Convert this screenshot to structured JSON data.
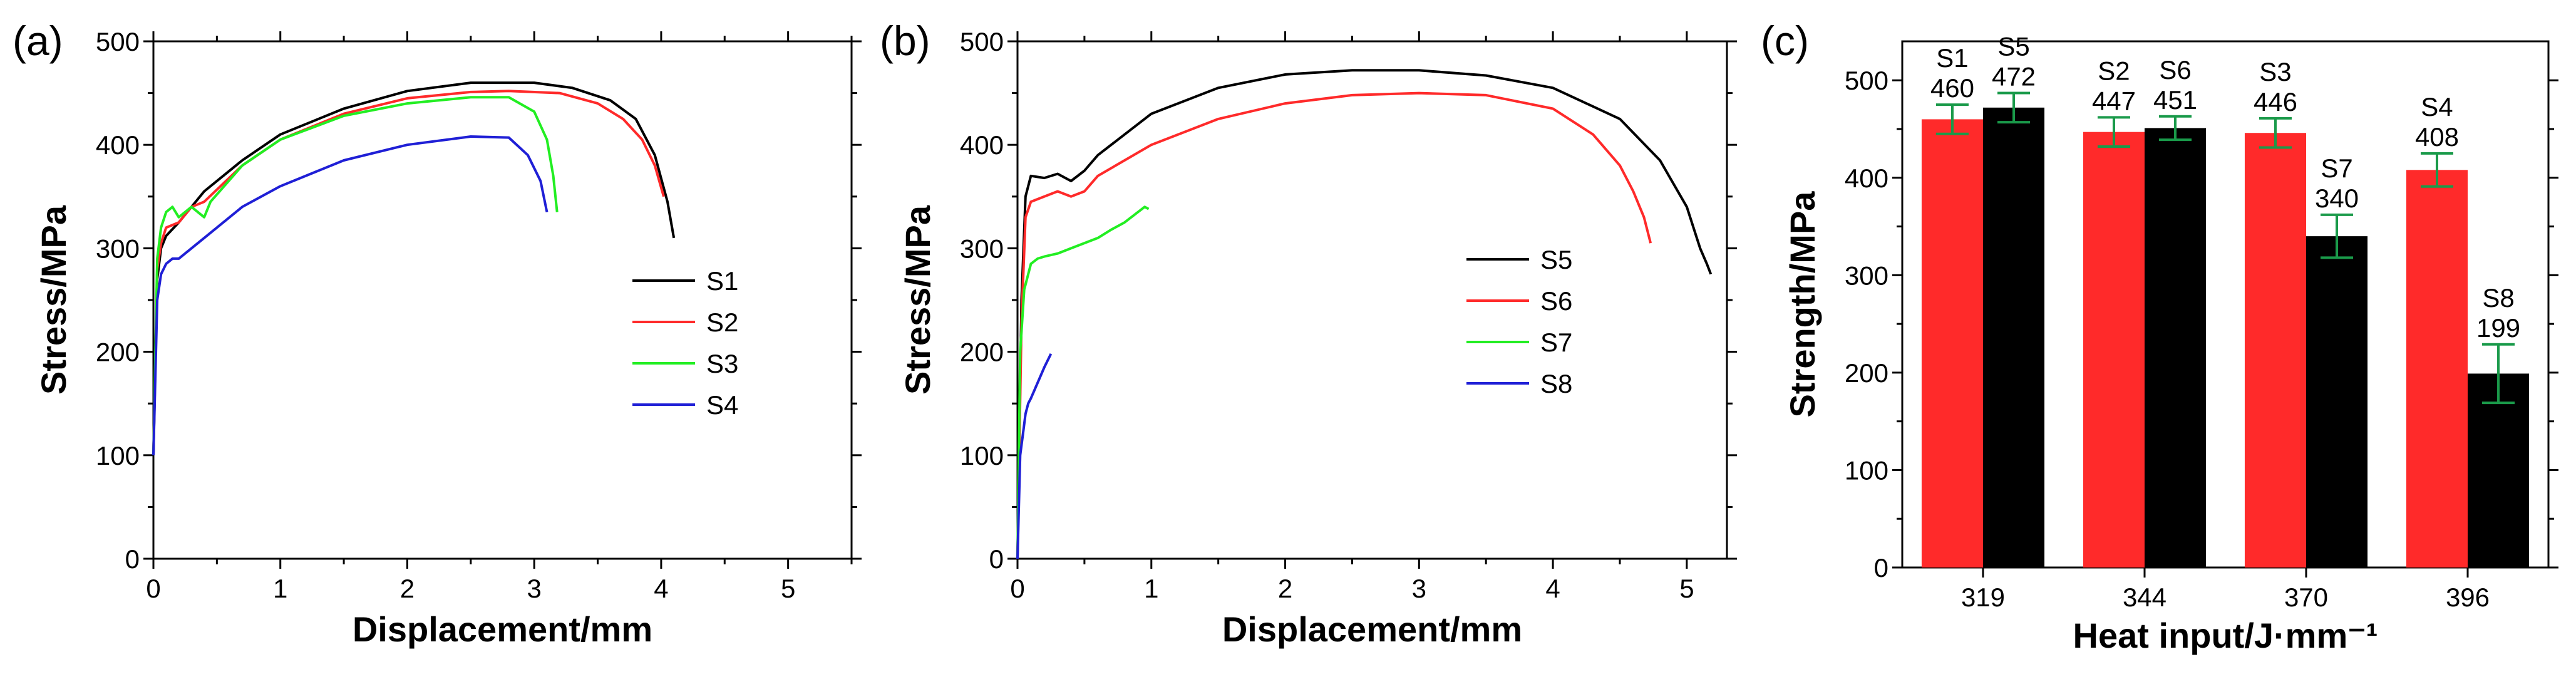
{
  "colors": {
    "black": "#000000",
    "red": "#ff2a2a",
    "green": "#22ee22",
    "blue": "#1f1fd6",
    "errorbar": "#1a9a4a"
  },
  "chart_data": [
    {
      "panel": "(a)",
      "type": "line",
      "xlabel": "Displacement/mm",
      "ylabel": "Stress/MPa",
      "xlim": [
        0,
        5.5
      ],
      "ylim": [
        0,
        500
      ],
      "xticks": [
        0,
        1,
        2,
        3,
        4,
        5
      ],
      "yticks": [
        0,
        100,
        200,
        300,
        400,
        500
      ],
      "legend_position": "right",
      "series": [
        {
          "name": "S1",
          "color": "#000000",
          "x": [
            0,
            0.03,
            0.06,
            0.1,
            0.2,
            0.4,
            0.7,
            1.0,
            1.5,
            2.0,
            2.5,
            3.0,
            3.3,
            3.6,
            3.8,
            3.95,
            4.05,
            4.1
          ],
          "y": [
            100,
            270,
            300,
            312,
            325,
            355,
            385,
            410,
            435,
            452,
            460,
            460,
            455,
            443,
            425,
            390,
            345,
            310
          ]
        },
        {
          "name": "S2",
          "color": "#ff2a2a",
          "x": [
            0,
            0.03,
            0.06,
            0.1,
            0.2,
            0.3,
            0.4,
            0.7,
            1.0,
            1.5,
            2.0,
            2.5,
            2.8,
            3.2,
            3.5,
            3.7,
            3.85,
            3.95,
            4.02
          ],
          "y": [
            100,
            280,
            305,
            320,
            325,
            340,
            345,
            380,
            405,
            430,
            445,
            451,
            452,
            450,
            440,
            425,
            405,
            380,
            350
          ]
        },
        {
          "name": "S3",
          "color": "#22ee22",
          "x": [
            0,
            0.03,
            0.06,
            0.1,
            0.15,
            0.2,
            0.3,
            0.4,
            0.45,
            0.7,
            1.0,
            1.5,
            2.0,
            2.5,
            2.8,
            3.0,
            3.1,
            3.15,
            3.18
          ],
          "y": [
            100,
            290,
            320,
            335,
            340,
            330,
            340,
            330,
            345,
            380,
            405,
            428,
            440,
            446,
            446,
            432,
            405,
            370,
            335
          ]
        },
        {
          "name": "S4",
          "color": "#1f1fd6",
          "x": [
            0,
            0.03,
            0.06,
            0.1,
            0.15,
            0.2,
            0.3,
            0.4,
            0.7,
            1.0,
            1.5,
            2.0,
            2.5,
            2.8,
            2.95,
            3.05,
            3.1
          ],
          "y": [
            100,
            250,
            275,
            285,
            290,
            290,
            300,
            310,
            340,
            360,
            385,
            400,
            408,
            407,
            390,
            365,
            335
          ]
        }
      ]
    },
    {
      "panel": "(b)",
      "type": "line",
      "xlabel": "Displacement/mm",
      "ylabel": "Stress/MPa",
      "xlim": [
        0,
        5.3
      ],
      "ylim": [
        0,
        500
      ],
      "xticks": [
        0,
        1,
        2,
        3,
        4,
        5
      ],
      "yticks": [
        0,
        100,
        200,
        300,
        400,
        500
      ],
      "legend_position": "right",
      "series": [
        {
          "name": "S5",
          "color": "#000000",
          "x": [
            0,
            0.03,
            0.06,
            0.1,
            0.2,
            0.3,
            0.4,
            0.5,
            0.6,
            1.0,
            1.5,
            2.0,
            2.5,
            3.0,
            3.5,
            4.0,
            4.5,
            4.8,
            5.0,
            5.1,
            5.15,
            5.18
          ],
          "y": [
            0,
            250,
            350,
            370,
            368,
            372,
            365,
            375,
            390,
            430,
            455,
            468,
            472,
            472,
            467,
            455,
            425,
            385,
            340,
            300,
            285,
            275
          ]
        },
        {
          "name": "S6",
          "color": "#ff2a2a",
          "x": [
            0,
            0.03,
            0.06,
            0.1,
            0.2,
            0.3,
            0.4,
            0.5,
            0.6,
            1.0,
            1.5,
            2.0,
            2.5,
            3.0,
            3.5,
            4.0,
            4.3,
            4.5,
            4.6,
            4.68,
            4.73
          ],
          "y": [
            0,
            230,
            330,
            345,
            350,
            355,
            350,
            355,
            370,
            400,
            425,
            440,
            448,
            450,
            448,
            435,
            410,
            380,
            355,
            330,
            305
          ]
        },
        {
          "name": "S7",
          "color": "#22ee22",
          "x": [
            0,
            0.02,
            0.05,
            0.1,
            0.15,
            0.2,
            0.3,
            0.4,
            0.5,
            0.6,
            0.7,
            0.8,
            0.9,
            0.95,
            0.98
          ],
          "y": [
            0,
            200,
            260,
            285,
            290,
            292,
            295,
            300,
            305,
            310,
            318,
            325,
            335,
            340,
            338
          ]
        },
        {
          "name": "S8",
          "color": "#1f1fd6",
          "x": [
            0,
            0.02,
            0.04,
            0.06,
            0.08,
            0.1,
            0.15,
            0.2,
            0.25
          ],
          "y": [
            0,
            100,
            120,
            140,
            150,
            155,
            170,
            185,
            198
          ]
        }
      ]
    },
    {
      "panel": "(c)",
      "type": "bar",
      "xlabel": "Heat input/J·mm⁻¹",
      "ylabel": "Strength/MPa",
      "ylim": [
        0,
        540
      ],
      "yticks": [
        0,
        100,
        200,
        300,
        400,
        500
      ],
      "categories": [
        "319",
        "344",
        "370",
        "396"
      ],
      "series": [
        {
          "color": "#ff2a2a",
          "labels": [
            "S1",
            "S2",
            "S3",
            "S4"
          ],
          "values": [
            460,
            447,
            446,
            408
          ],
          "errors": [
            15,
            15,
            15,
            17
          ]
        },
        {
          "color": "#000000",
          "labels": [
            "S5",
            "S6",
            "S7",
            "S8"
          ],
          "values": [
            472,
            451,
            340,
            199
          ],
          "errors": [
            15,
            12,
            22,
            30
          ]
        }
      ],
      "value_labels": [
        [
          "460",
          "447",
          "446",
          "408"
        ],
        [
          "472",
          "451",
          "340",
          "199"
        ]
      ]
    }
  ]
}
